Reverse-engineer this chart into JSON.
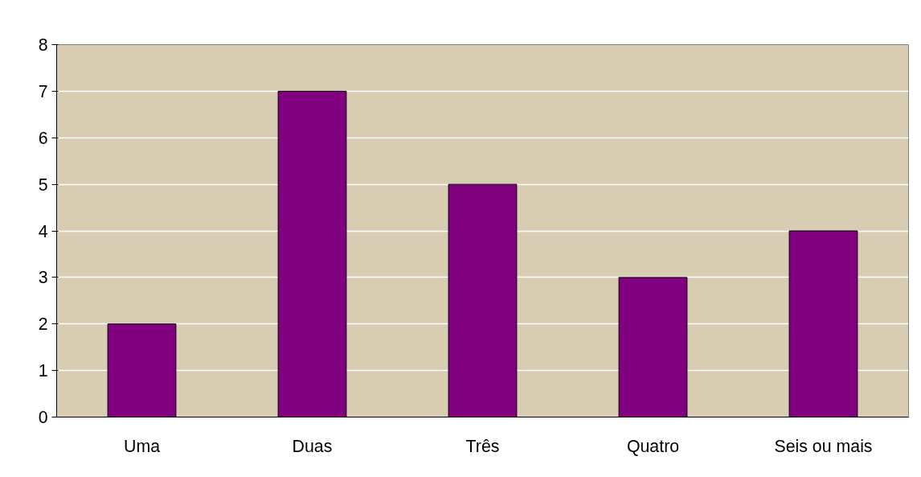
{
  "chart_data": {
    "type": "bar",
    "categories": [
      "Uma",
      "Duas",
      "Três",
      "Quatro",
      "Seis ou mais"
    ],
    "values": [
      2,
      7,
      5,
      3,
      4
    ],
    "color": "#800080",
    "ylim": [
      0,
      8
    ],
    "yticks": [
      0,
      1,
      2,
      3,
      4,
      5,
      6,
      7,
      8
    ],
    "grid": "y"
  }
}
